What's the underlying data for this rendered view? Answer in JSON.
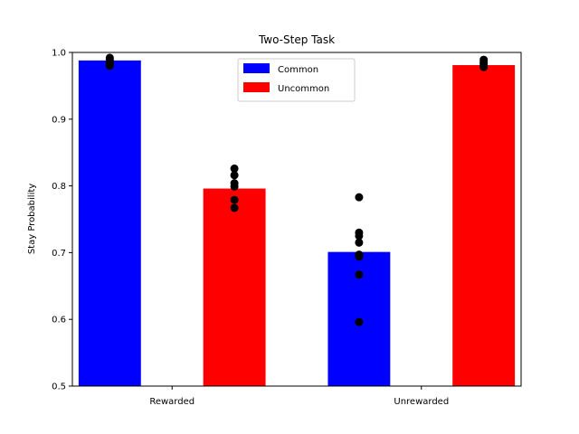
{
  "chart_data": {
    "type": "bar",
    "title": "Two-Step Task",
    "ylabel": "Stay Probability",
    "xlabel": "",
    "ylim": [
      0.5,
      1.0
    ],
    "yticks": [
      "0.5",
      "0.6",
      "0.7",
      "0.8",
      "0.9",
      "1.0"
    ],
    "categories": [
      "Rewarded",
      "Unrewarded"
    ],
    "legend_position": "top-center",
    "series": [
      {
        "name": "Common",
        "color": "#0000ff",
        "values": [
          0.988,
          0.701
        ],
        "points": [
          [
            0.992,
            0.99,
            0.987,
            0.985,
            0.982,
            0.98
          ],
          [
            0.783,
            0.73,
            0.725,
            0.715,
            0.697,
            0.694,
            0.667,
            0.596
          ]
        ]
      },
      {
        "name": "Uncommon",
        "color": "#ff0000",
        "values": [
          0.796,
          0.981
        ],
        "points": [
          [
            0.826,
            0.816,
            0.804,
            0.799,
            0.779,
            0.767
          ],
          [
            0.989,
            0.986,
            0.983,
            0.98,
            0.978
          ]
        ]
      }
    ]
  }
}
